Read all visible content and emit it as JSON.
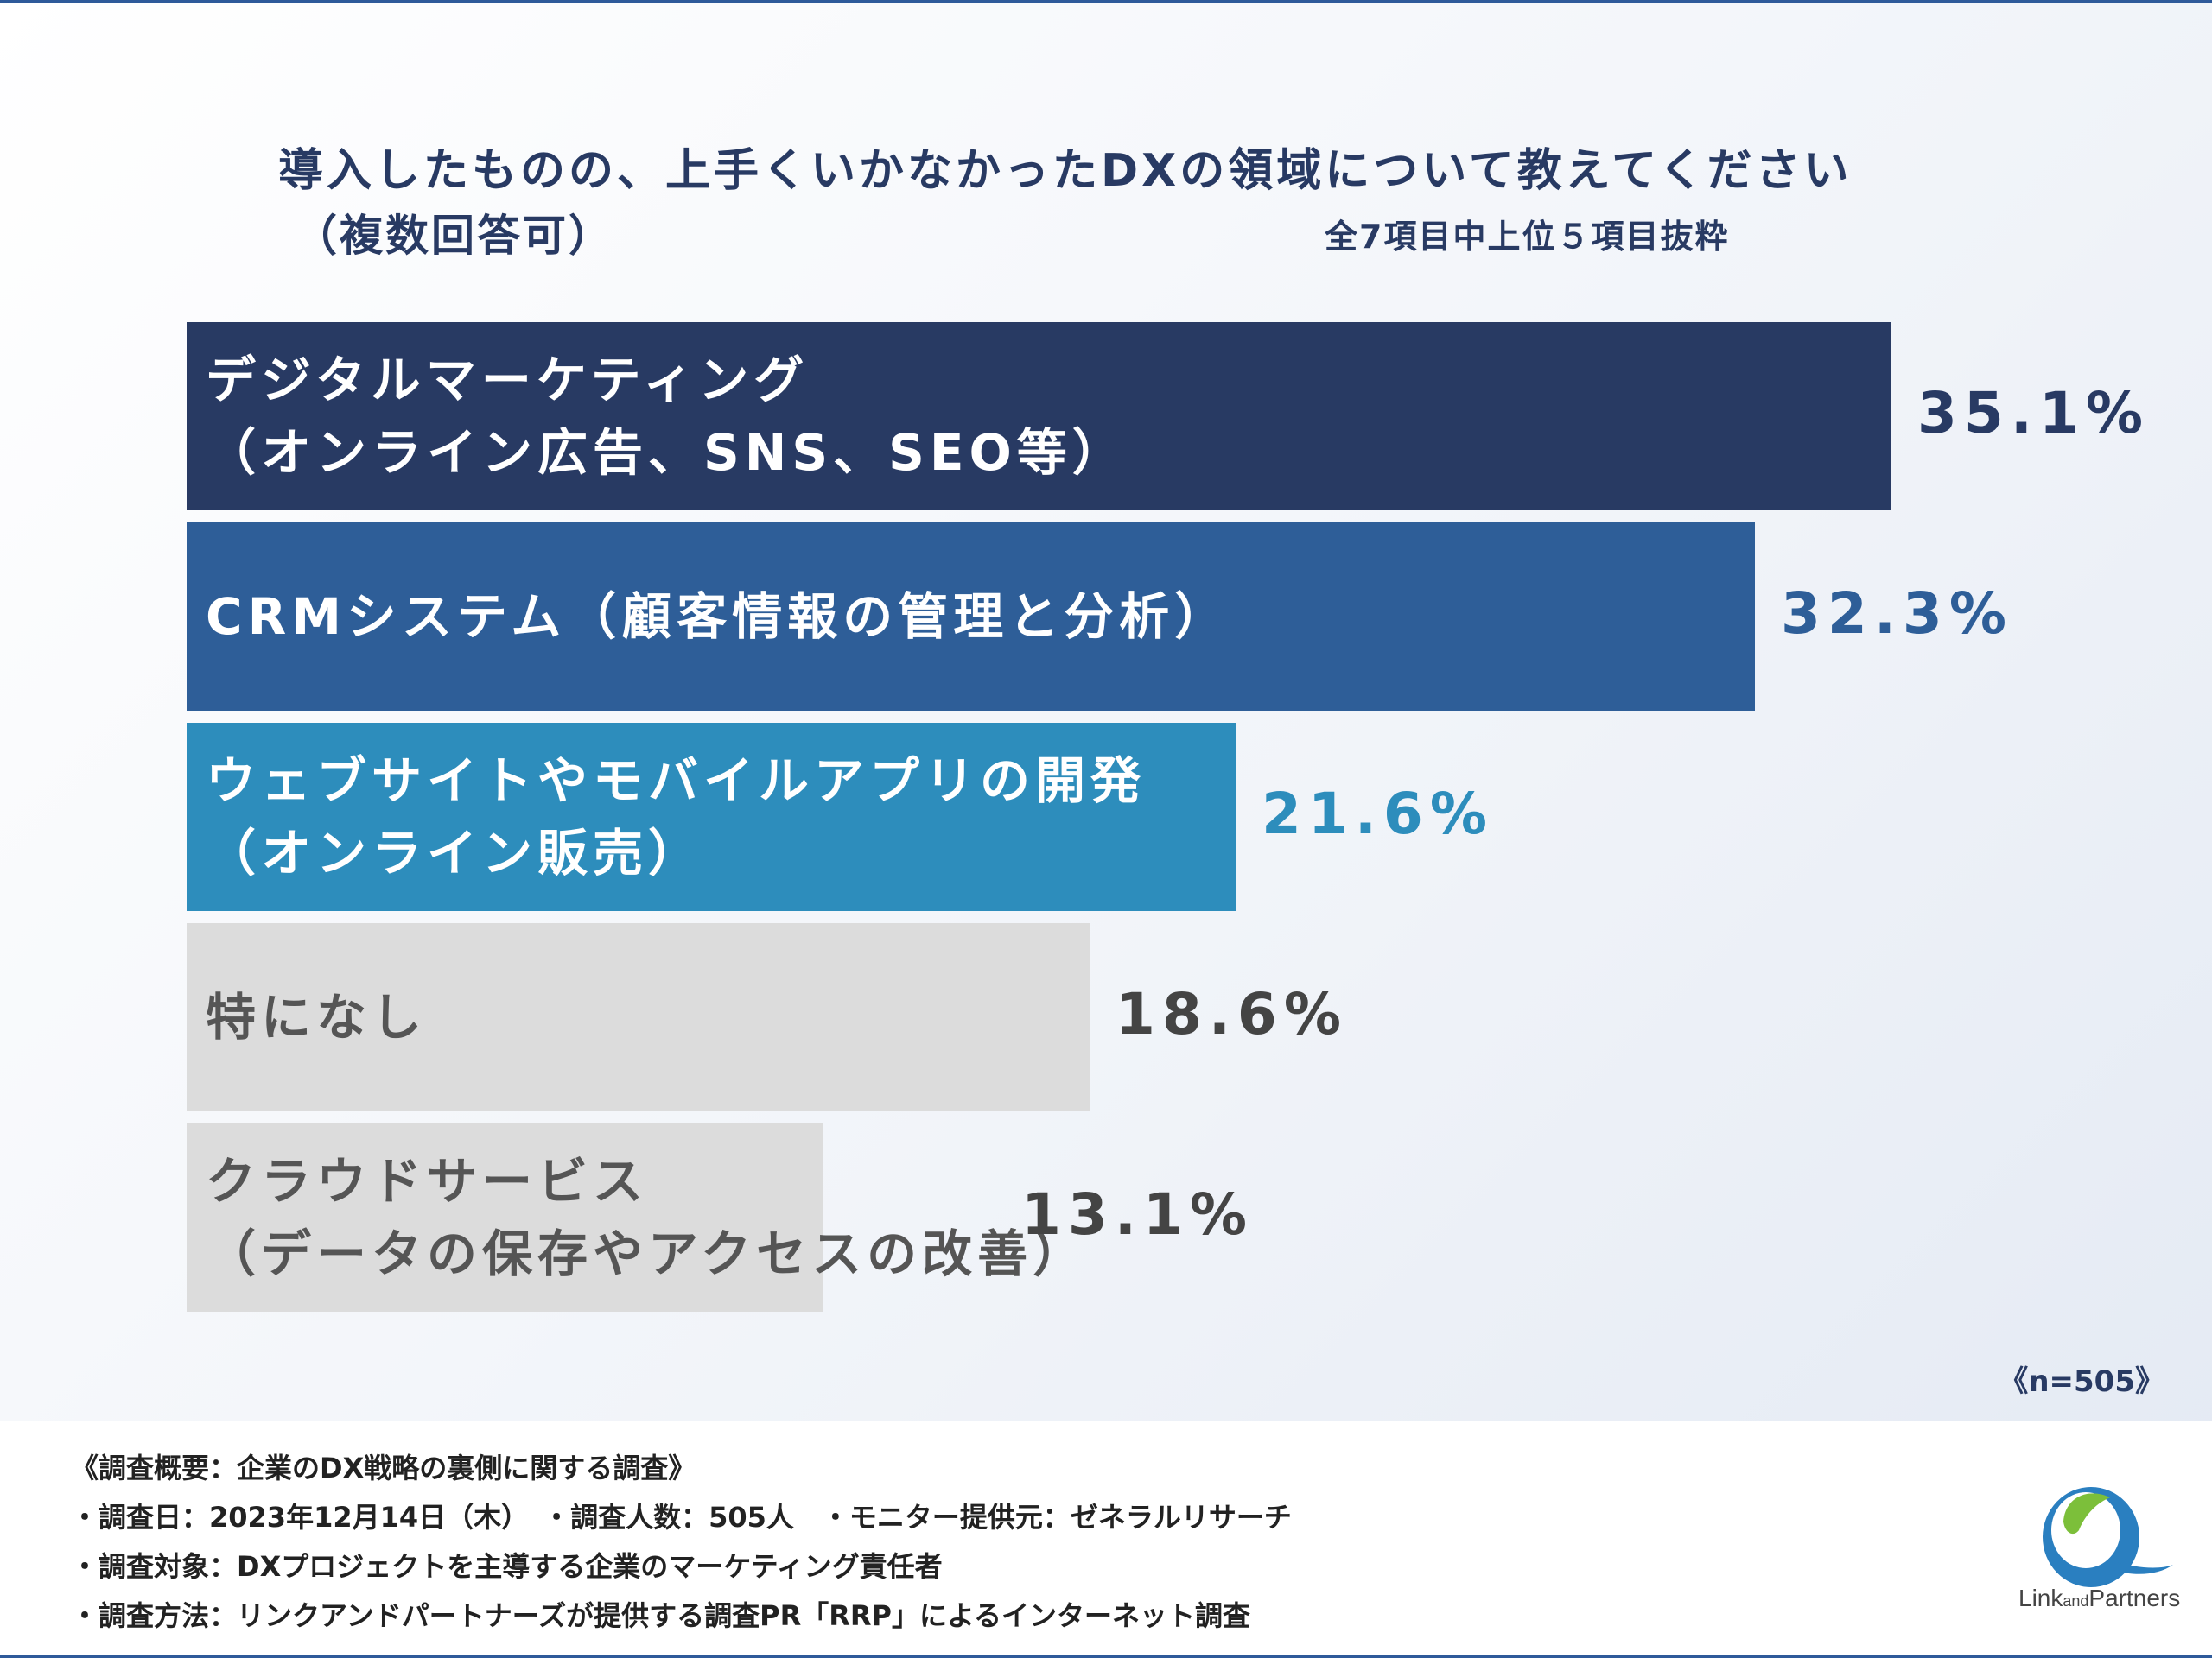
{
  "chart_data": {
    "type": "bar",
    "orientation": "horizontal",
    "title": "導入したものの、上手くいかなかったDXの領域について教えてください",
    "subtitle": "（複数回答可）",
    "note": "全7項目中上位５項目抜粋",
    "sample_size": "《n=505》",
    "xlim": [
      0,
      100
    ],
    "categories": [
      "デジタルマーケティング\n（オンライン広告、SNS、SEO等）",
      "CRMシステム（顧客情報の管理と分析）",
      "ウェブサイトやモバイルアプリの開発\n（オンライン販売）",
      "特になし",
      "クラウドサービス\n（データの保存やアクセスの改善）"
    ],
    "values": [
      35.1,
      32.3,
      21.6,
      18.6,
      13.1
    ],
    "value_labels": [
      "35.1%",
      "32.3%",
      "21.6%",
      "18.6%",
      "13.1%"
    ],
    "colors": [
      "#283a63",
      "#2e5e98",
      "#2d8dbc",
      "#dcdcdc",
      "#dcdcdc"
    ],
    "label_colors": [
      "#283a63",
      "#2e5e98",
      "#2d8dbc",
      "#444444",
      "#444444"
    ],
    "grid": false,
    "legend": "none"
  },
  "footer": {
    "survey_title": "《調査概要：企業のDX戦略の裏側に関する調査》",
    "line1": "・調査日：2023年12月14日（木）　・調査人数：505人　・モニター提供元：ゼネラルリサーチ",
    "line2": "・調査対象：DXプロジェクトを主導する企業のマーケティング責任者",
    "line3": "・調査方法：リンクアンドパートナーズが提供する調査PR「RRP」によるインターネット調査"
  },
  "logo": {
    "text_link": "Link",
    "text_and": "and",
    "text_partners": "Partners"
  }
}
